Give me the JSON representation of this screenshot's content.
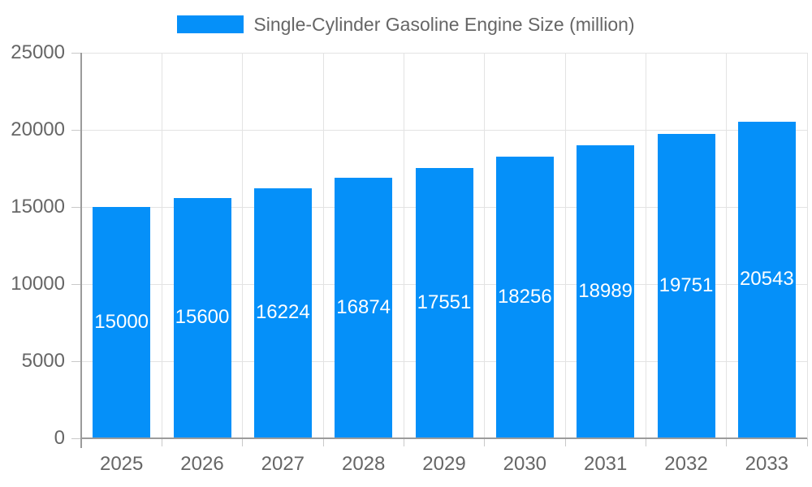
{
  "chart_data": {
    "type": "bar",
    "title": "Single-Cylinder Gasoline Engine Size (million)",
    "xlabel": "",
    "ylabel": "",
    "categories": [
      "2025",
      "2026",
      "2027",
      "2028",
      "2029",
      "2030",
      "2031",
      "2032",
      "2033"
    ],
    "series": [
      {
        "name": "Single-Cylinder Gasoline Engine Size (million)",
        "values": [
          15000,
          15600,
          16224,
          16874,
          17551,
          18256,
          18989,
          19751,
          20543
        ]
      }
    ],
    "data_labels": {
      "visible": true,
      "position": "center-of-bar",
      "color": "#FFFFFF"
    },
    "ylim": [
      0,
      25000
    ],
    "yticks": [
      0,
      5000,
      10000,
      15000,
      20000,
      25000
    ],
    "grid": true,
    "legend": {
      "position": "top-center",
      "entries": [
        "Single-Cylinder Gasoline Engine Size (million)"
      ]
    }
  },
  "colors": {
    "bar": "#0590F9",
    "bar_label": "#FFFFFF",
    "axis_text": "#666666",
    "legend_text": "#666666",
    "grid_line": "#E3E3E3",
    "tick_line": "#C9C9C9",
    "axis_line": "#9B9B9B",
    "background": "#FFFFFF"
  }
}
